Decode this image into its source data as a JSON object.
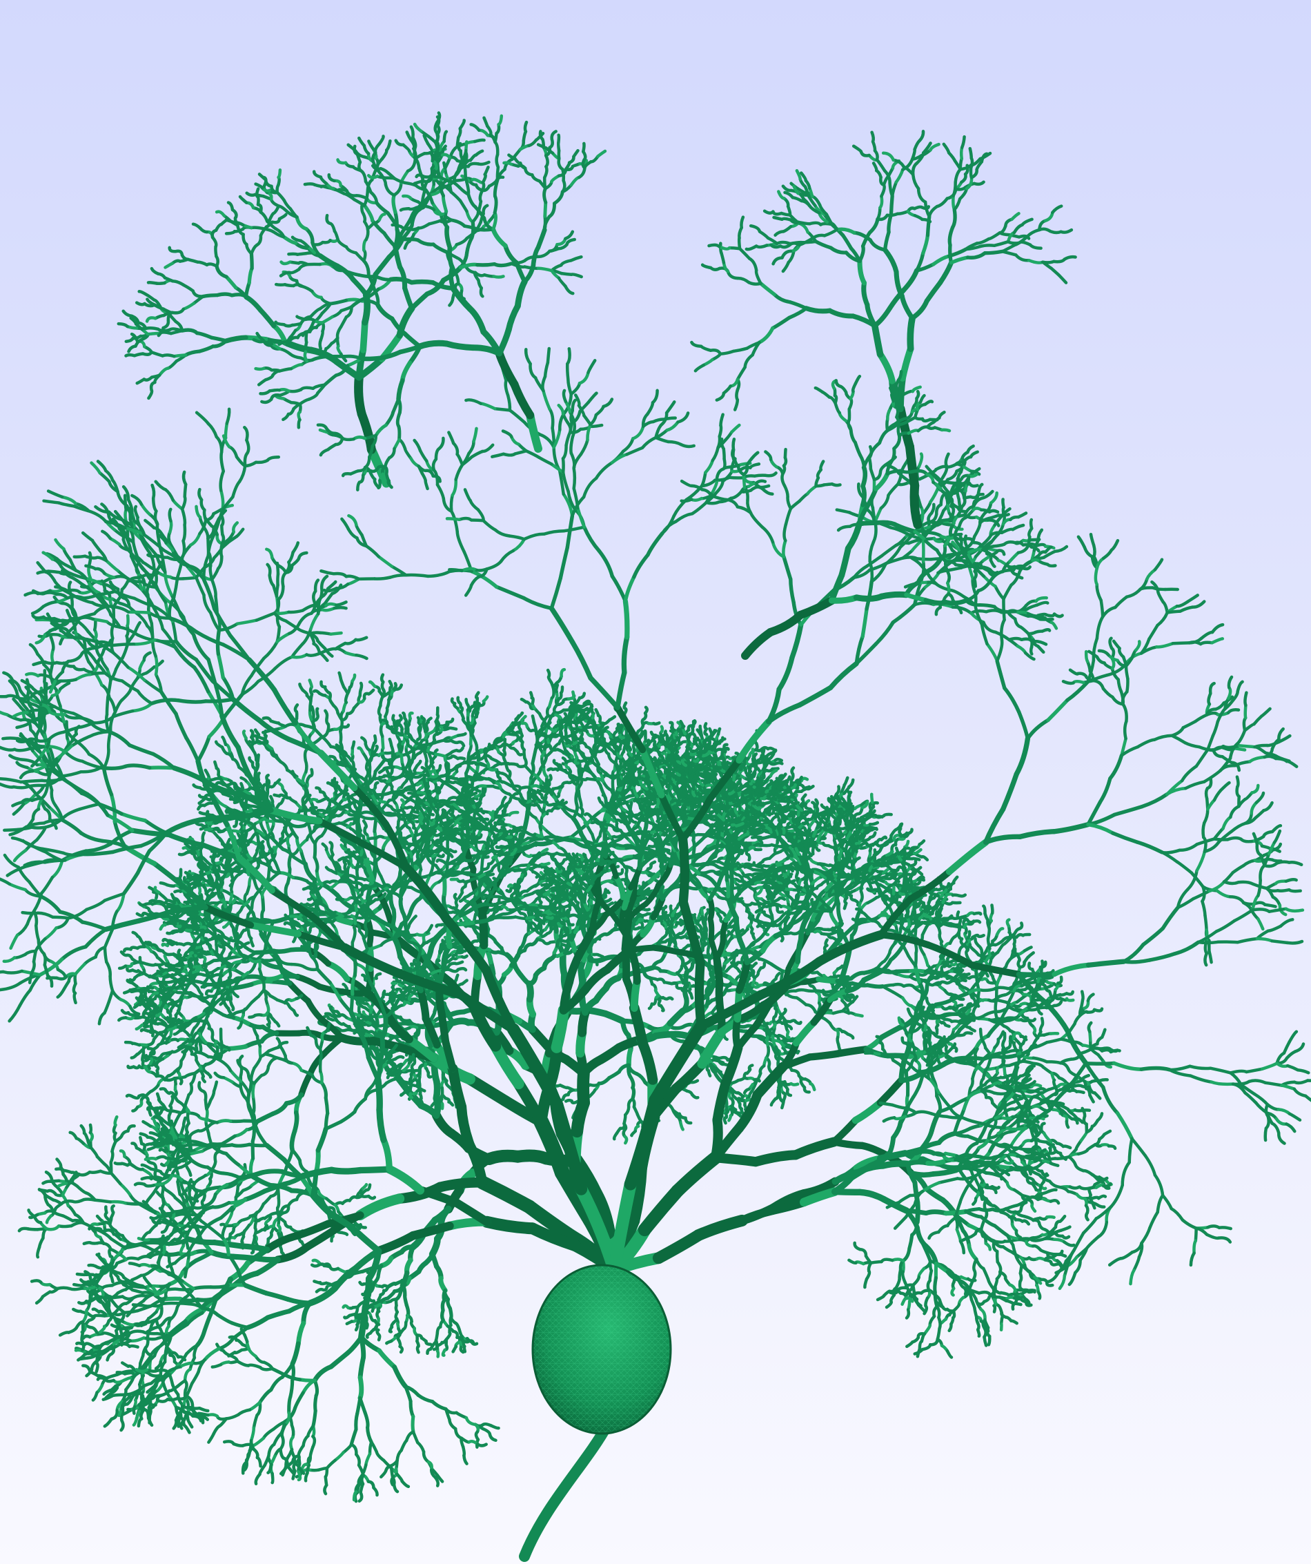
{
  "scene": {
    "subject": "neuron-mesh",
    "colors": {
      "background_top": "#d3d9fd",
      "background_bottom": "#f9f9ff",
      "mesh": "#138a54",
      "mesh_dark": "#0c6a3e",
      "mesh_light": "#1fa866",
      "wireframe": "#3bd08a"
    }
  }
}
